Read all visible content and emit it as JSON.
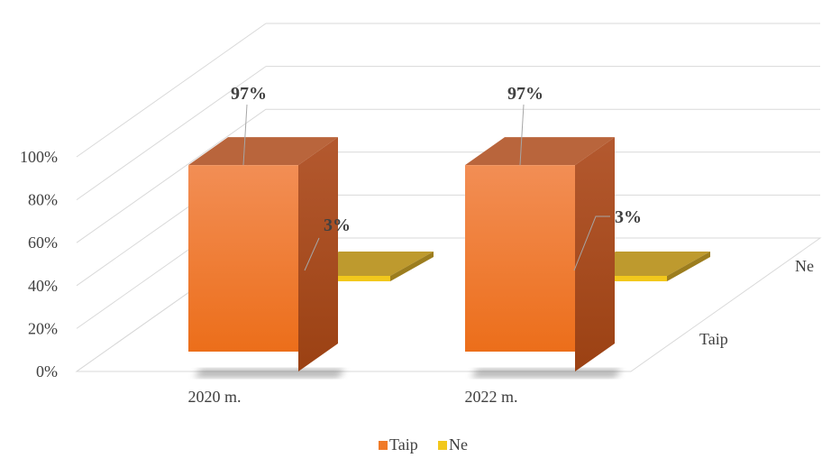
{
  "chart_data": {
    "type": "bar",
    "categories": [
      "2020 m.",
      "2022 m."
    ],
    "series": [
      {
        "name": "Taip",
        "values": [
          97,
          97
        ],
        "labels": [
          "97%",
          "97%"
        ],
        "color": "#F07A28"
      },
      {
        "name": "Ne",
        "values": [
          3,
          3
        ],
        "labels": [
          "3%",
          "3%"
        ],
        "color": "#F2C81C"
      }
    ],
    "y_ticks": [
      "0%",
      "20%",
      "40%",
      "60%",
      "80%",
      "100%"
    ],
    "depth_labels": [
      "Taip",
      "Ne"
    ],
    "ylim": [
      0,
      100
    ],
    "grid": true,
    "legend": "bottom"
  }
}
